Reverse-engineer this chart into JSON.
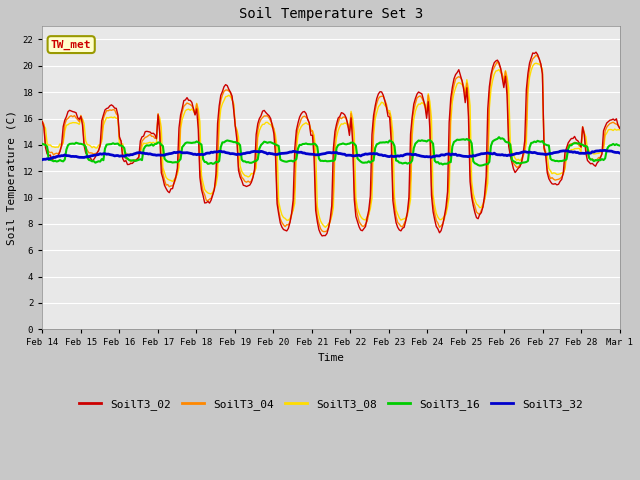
{
  "title": "Soil Temperature Set 3",
  "xlabel": "Time",
  "ylabel": "Soil Temperature (C)",
  "ylim": [
    0,
    23
  ],
  "yticks": [
    0,
    2,
    4,
    6,
    8,
    10,
    12,
    14,
    16,
    18,
    20,
    22
  ],
  "series_colors": {
    "SoilT3_02": "#cc0000",
    "SoilT3_04": "#ff8800",
    "SoilT3_08": "#ffdd00",
    "SoilT3_16": "#00cc00",
    "SoilT3_32": "#0000cc"
  },
  "annotation_text": "TW_met",
  "annotation_color": "#cc0000",
  "annotation_bg": "#ffffcc",
  "annotation_border": "#999900",
  "fig_bg": "#c8c8c8",
  "plot_bg": "#e8e8e8",
  "grid_color": "#ffffff",
  "xtick_labels": [
    "Feb 14",
    "Feb 15",
    "Feb 16",
    "Feb 17",
    "Feb 18",
    "Feb 19",
    "Feb 20",
    "Feb 21",
    "Feb 22",
    "Feb 23",
    "Feb 24",
    "Feb 25",
    "Feb 26",
    "Feb 27",
    "Feb 28",
    "Mar 1"
  ],
  "figsize": [
    6.4,
    4.8
  ],
  "dpi": 100
}
